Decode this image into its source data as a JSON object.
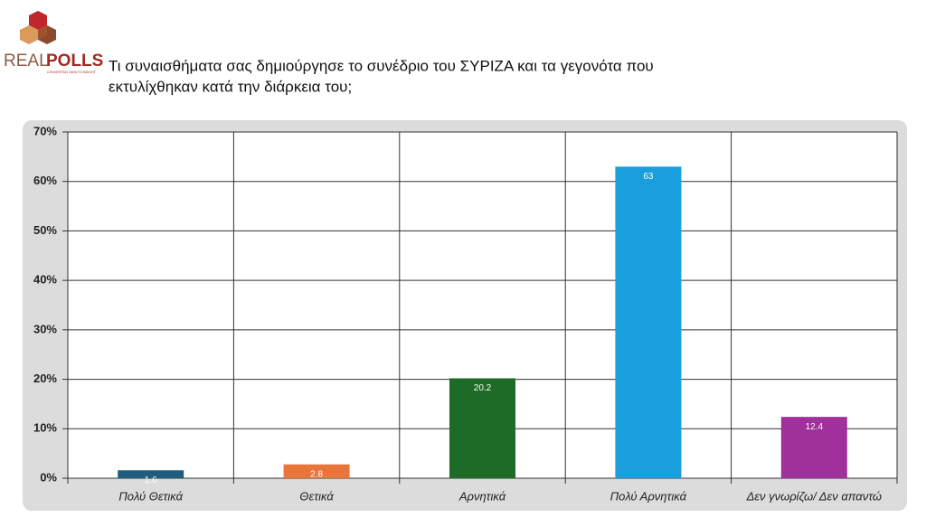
{
  "logo": {
    "word_1": "REAL",
    "word_2": "POLLS",
    "tagline": "CONVERTING DATA TO INSIGHT"
  },
  "chart_data": {
    "type": "bar",
    "title_lines": [
      "Τι συναισθήματα σας δημιούργησε το συνέδριο του ΣΥΡΙΖΑ και τα γεγονότα που",
      "εκτυλίχθηκαν κατά την διάρκεια του;"
    ],
    "categories": [
      "Πολύ Θετικά",
      "Θετικά",
      "Αρνητικά",
      "Πολύ Αρνητικά",
      "Δεν γνωρίζω/ Δεν απαντώ"
    ],
    "values": [
      1.6,
      2.8,
      20.2,
      63,
      12.4
    ],
    "colors": [
      "#1f5d7c",
      "#e8763a",
      "#1e6b28",
      "#189fdc",
      "#a0309b"
    ],
    "ylim": [
      0,
      70
    ],
    "yticks": [
      {
        "value": 0,
        "label": "0%"
      },
      {
        "value": 10,
        "label": "10%"
      },
      {
        "value": 20,
        "label": "20%"
      },
      {
        "value": 30,
        "label": "30%"
      },
      {
        "value": 40,
        "label": "40%"
      },
      {
        "value": 50,
        "label": "50%"
      },
      {
        "value": 60,
        "label": "60%"
      },
      {
        "value": 70,
        "label": "70%"
      }
    ],
    "grid": true
  }
}
